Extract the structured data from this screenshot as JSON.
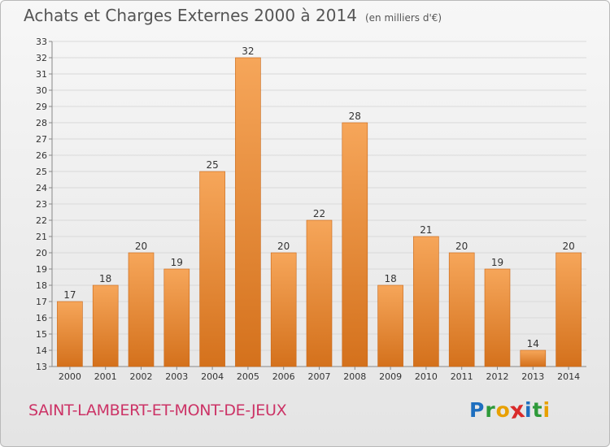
{
  "header": {
    "title": "Achats et Charges Externes 2000 à 2014",
    "unit": "(en milliers d'€)"
  },
  "footer": {
    "place": "SAINT-LAMBERT-ET-MONT-DE-JEUX",
    "logo_letters": [
      "P",
      "r",
      "o",
      "x",
      "i",
      "t",
      "i"
    ],
    "logo_colors": [
      "#1e6fbf",
      "#2e9a3a",
      "#e8a000",
      "#d92b2b",
      "#1e6fbf",
      "#2e9a3a",
      "#e8a000"
    ]
  },
  "chart_data": {
    "type": "bar",
    "title": "Achats et Charges Externes 2000 à 2014",
    "categories": [
      "2000",
      "2001",
      "2002",
      "2003",
      "2004",
      "2005",
      "2006",
      "2007",
      "2008",
      "2009",
      "2010",
      "2011",
      "2012",
      "2013",
      "2014"
    ],
    "values": [
      17,
      18,
      20,
      19,
      25,
      32,
      20,
      22,
      28,
      18,
      21,
      20,
      19,
      14,
      20
    ],
    "ylim": [
      13,
      33
    ],
    "yticks": [
      13,
      14,
      15,
      16,
      17,
      18,
      19,
      20,
      21,
      22,
      23,
      24,
      25,
      26,
      27,
      28,
      29,
      30,
      31,
      32,
      33
    ],
    "grid": true,
    "bar_color": "#e98a2e"
  }
}
